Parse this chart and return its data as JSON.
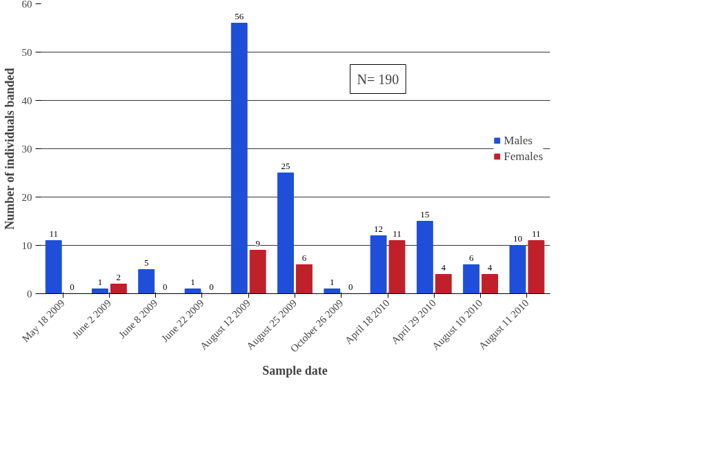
{
  "chart_data": {
    "type": "bar",
    "xlabel": "Sample date",
    "ylabel": "Number of individuals banded",
    "categories": [
      "May 18 2009",
      "June 2 2009",
      "June 8 2009",
      "June 22 2009",
      "August 12 2009",
      "August 25 2009",
      "October 26 2009",
      "April 18 2010",
      "April 29 2010",
      "August 10 2010",
      "August 11 2010"
    ],
    "series": [
      {
        "name": "Males",
        "color": "#1f4fd8",
        "values": [
          11,
          1,
          5,
          1,
          56,
          25,
          1,
          12,
          15,
          6,
          10
        ]
      },
      {
        "name": "Females",
        "color": "#c0202a",
        "values": [
          0,
          2,
          0,
          0,
          9,
          6,
          0,
          11,
          4,
          4,
          11
        ]
      }
    ],
    "ylim": [
      0,
      60
    ],
    "yticks": [
      0,
      10,
      20,
      30,
      40,
      50,
      60
    ],
    "grid": "y",
    "legend": "right",
    "data_labels": true,
    "annotations": [
      "N= 190"
    ]
  }
}
